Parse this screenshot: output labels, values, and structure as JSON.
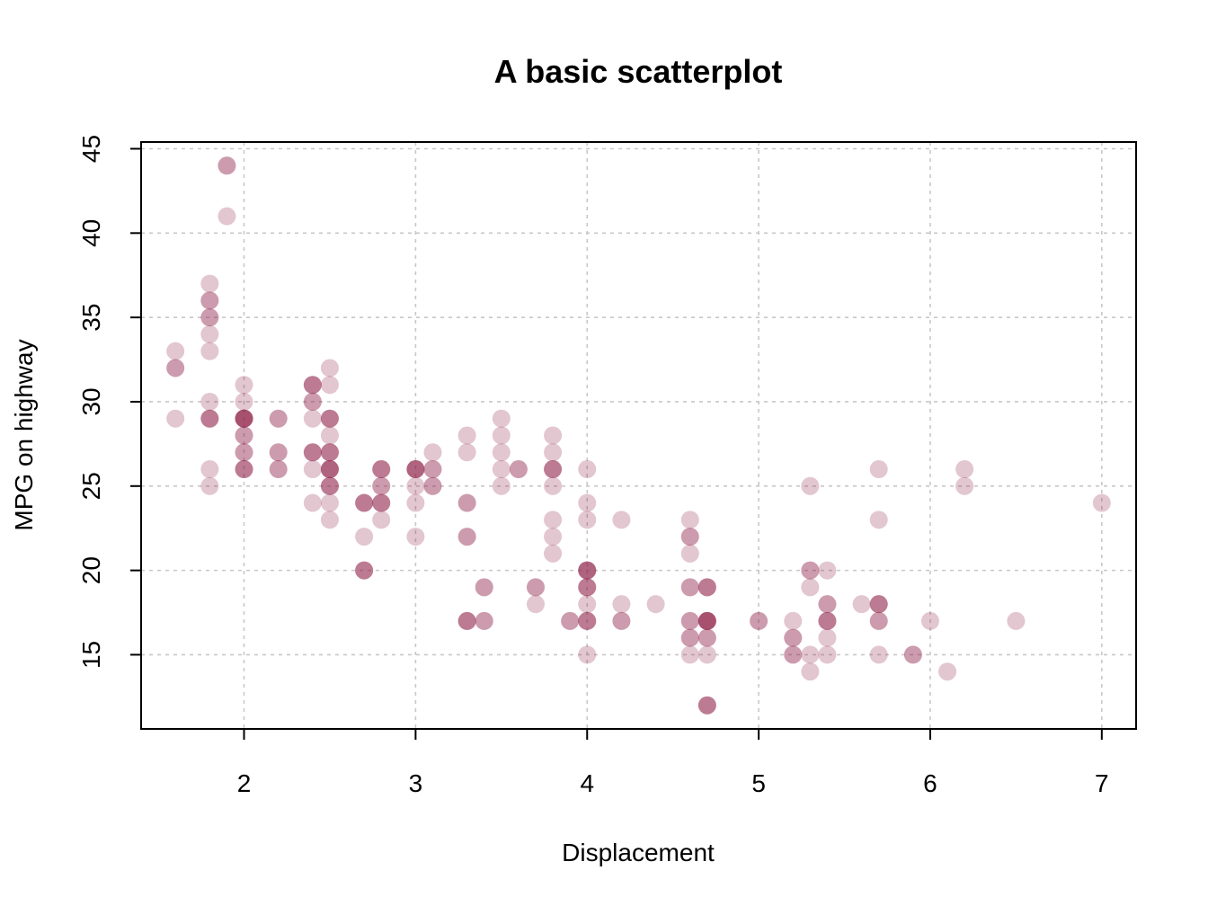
{
  "chart_data": {
    "type": "scatter",
    "title": "A basic scatterplot",
    "xlabel": "Displacement",
    "ylabel": "MPG on highway",
    "xlim": [
      1.4,
      7.2
    ],
    "ylim": [
      10.6,
      45.4
    ],
    "xticks": [
      2,
      3,
      4,
      5,
      6,
      7
    ],
    "yticks": [
      15,
      20,
      25,
      30,
      35,
      40,
      45
    ],
    "grid": true,
    "point_color": "#8b1a45",
    "point_alpha": 0.25,
    "points": [
      [
        1.6,
        33
      ],
      [
        1.6,
        32
      ],
      [
        1.6,
        32
      ],
      [
        1.6,
        29
      ],
      [
        1.8,
        37
      ],
      [
        1.8,
        36
      ],
      [
        1.8,
        36
      ],
      [
        1.8,
        35
      ],
      [
        1.8,
        35
      ],
      [
        1.8,
        34
      ],
      [
        1.8,
        33
      ],
      [
        1.8,
        30
      ],
      [
        1.8,
        29
      ],
      [
        1.8,
        29
      ],
      [
        1.8,
        29
      ],
      [
        1.8,
        26
      ],
      [
        1.8,
        25
      ],
      [
        1.9,
        44
      ],
      [
        1.9,
        44
      ],
      [
        1.9,
        41
      ],
      [
        2.0,
        31
      ],
      [
        2.0,
        30
      ],
      [
        2.0,
        29
      ],
      [
        2.0,
        29
      ],
      [
        2.0,
        29
      ],
      [
        2.0,
        29
      ],
      [
        2.0,
        29
      ],
      [
        2.0,
        28
      ],
      [
        2.0,
        28
      ],
      [
        2.0,
        27
      ],
      [
        2.0,
        27
      ],
      [
        2.0,
        26
      ],
      [
        2.0,
        26
      ],
      [
        2.0,
        26
      ],
      [
        2.2,
        29
      ],
      [
        2.2,
        29
      ],
      [
        2.2,
        27
      ],
      [
        2.2,
        27
      ],
      [
        2.2,
        26
      ],
      [
        2.2,
        26
      ],
      [
        2.4,
        31
      ],
      [
        2.4,
        31
      ],
      [
        2.4,
        31
      ],
      [
        2.4,
        30
      ],
      [
        2.4,
        30
      ],
      [
        2.4,
        29
      ],
      [
        2.4,
        27
      ],
      [
        2.4,
        27
      ],
      [
        2.4,
        27
      ],
      [
        2.4,
        26
      ],
      [
        2.4,
        24
      ],
      [
        2.5,
        32
      ],
      [
        2.5,
        31
      ],
      [
        2.5,
        29
      ],
      [
        2.5,
        29
      ],
      [
        2.5,
        29
      ],
      [
        2.5,
        28
      ],
      [
        2.5,
        27
      ],
      [
        2.5,
        27
      ],
      [
        2.5,
        27
      ],
      [
        2.5,
        26
      ],
      [
        2.5,
        26
      ],
      [
        2.5,
        26
      ],
      [
        2.5,
        26
      ],
      [
        2.5,
        25
      ],
      [
        2.5,
        25
      ],
      [
        2.5,
        25
      ],
      [
        2.5,
        24
      ],
      [
        2.5,
        23
      ],
      [
        2.7,
        24
      ],
      [
        2.7,
        24
      ],
      [
        2.7,
        24
      ],
      [
        2.7,
        22
      ],
      [
        2.7,
        20
      ],
      [
        2.7,
        20
      ],
      [
        2.7,
        20
      ],
      [
        2.8,
        26
      ],
      [
        2.8,
        26
      ],
      [
        2.8,
        26
      ],
      [
        2.8,
        25
      ],
      [
        2.8,
        25
      ],
      [
        2.8,
        24
      ],
      [
        2.8,
        24
      ],
      [
        2.8,
        24
      ],
      [
        2.8,
        23
      ],
      [
        3.0,
        26
      ],
      [
        3.0,
        26
      ],
      [
        3.0,
        26
      ],
      [
        3.0,
        26
      ],
      [
        3.0,
        25
      ],
      [
        3.0,
        24
      ],
      [
        3.0,
        22
      ],
      [
        3.1,
        27
      ],
      [
        3.1,
        26
      ],
      [
        3.1,
        26
      ],
      [
        3.1,
        25
      ],
      [
        3.1,
        25
      ],
      [
        3.3,
        28
      ],
      [
        3.3,
        27
      ],
      [
        3.3,
        24
      ],
      [
        3.3,
        24
      ],
      [
        3.3,
        22
      ],
      [
        3.3,
        22
      ],
      [
        3.3,
        17
      ],
      [
        3.3,
        17
      ],
      [
        3.3,
        17
      ],
      [
        3.4,
        19
      ],
      [
        3.4,
        19
      ],
      [
        3.4,
        17
      ],
      [
        3.4,
        17
      ],
      [
        3.5,
        29
      ],
      [
        3.5,
        28
      ],
      [
        3.5,
        27
      ],
      [
        3.5,
        26
      ],
      [
        3.5,
        25
      ],
      [
        3.6,
        26
      ],
      [
        3.6,
        26
      ],
      [
        3.7,
        19
      ],
      [
        3.7,
        19
      ],
      [
        3.7,
        18
      ],
      [
        3.8,
        28
      ],
      [
        3.8,
        27
      ],
      [
        3.8,
        26
      ],
      [
        3.8,
        26
      ],
      [
        3.8,
        26
      ],
      [
        3.8,
        25
      ],
      [
        3.8,
        23
      ],
      [
        3.8,
        22
      ],
      [
        3.8,
        21
      ],
      [
        3.9,
        17
      ],
      [
        3.9,
        17
      ],
      [
        4.0,
        26
      ],
      [
        4.0,
        24
      ],
      [
        4.0,
        23
      ],
      [
        4.0,
        20
      ],
      [
        4.0,
        20
      ],
      [
        4.0,
        20
      ],
      [
        4.0,
        20
      ],
      [
        4.0,
        19
      ],
      [
        4.0,
        19
      ],
      [
        4.0,
        19
      ],
      [
        4.0,
        18
      ],
      [
        4.0,
        17
      ],
      [
        4.0,
        17
      ],
      [
        4.0,
        17
      ],
      [
        4.0,
        15
      ],
      [
        4.2,
        23
      ],
      [
        4.2,
        18
      ],
      [
        4.2,
        17
      ],
      [
        4.2,
        17
      ],
      [
        4.4,
        18
      ],
      [
        4.6,
        23
      ],
      [
        4.6,
        22
      ],
      [
        4.6,
        22
      ],
      [
        4.6,
        21
      ],
      [
        4.6,
        19
      ],
      [
        4.6,
        19
      ],
      [
        4.6,
        17
      ],
      [
        4.6,
        17
      ],
      [
        4.6,
        16
      ],
      [
        4.6,
        16
      ],
      [
        4.6,
        15
      ],
      [
        4.7,
        19
      ],
      [
        4.7,
        19
      ],
      [
        4.7,
        19
      ],
      [
        4.7,
        17
      ],
      [
        4.7,
        17
      ],
      [
        4.7,
        17
      ],
      [
        4.7,
        17
      ],
      [
        4.7,
        17
      ],
      [
        4.7,
        16
      ],
      [
        4.7,
        16
      ],
      [
        4.7,
        15
      ],
      [
        4.7,
        12
      ],
      [
        4.7,
        12
      ],
      [
        4.7,
        12
      ],
      [
        5.0,
        17
      ],
      [
        5.0,
        17
      ],
      [
        5.2,
        17
      ],
      [
        5.2,
        16
      ],
      [
        5.2,
        16
      ],
      [
        5.2,
        15
      ],
      [
        5.2,
        15
      ],
      [
        5.3,
        25
      ],
      [
        5.3,
        20
      ],
      [
        5.3,
        20
      ],
      [
        5.3,
        19
      ],
      [
        5.3,
        15
      ],
      [
        5.3,
        14
      ],
      [
        5.4,
        20
      ],
      [
        5.4,
        18
      ],
      [
        5.4,
        18
      ],
      [
        5.4,
        17
      ],
      [
        5.4,
        17
      ],
      [
        5.4,
        17
      ],
      [
        5.4,
        16
      ],
      [
        5.4,
        15
      ],
      [
        5.6,
        18
      ],
      [
        5.7,
        26
      ],
      [
        5.7,
        23
      ],
      [
        5.7,
        18
      ],
      [
        5.7,
        18
      ],
      [
        5.7,
        18
      ],
      [
        5.7,
        17
      ],
      [
        5.7,
        17
      ],
      [
        5.7,
        15
      ],
      [
        5.9,
        15
      ],
      [
        5.9,
        15
      ],
      [
        6.0,
        17
      ],
      [
        6.1,
        14
      ],
      [
        6.2,
        26
      ],
      [
        6.2,
        25
      ],
      [
        6.5,
        17
      ],
      [
        7.0,
        24
      ]
    ]
  }
}
